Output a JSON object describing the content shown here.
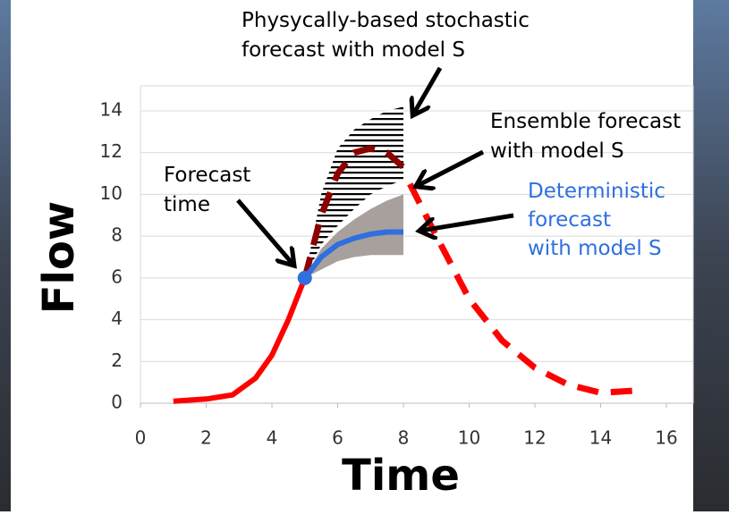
{
  "chart_data": {
    "type": "line",
    "xlabel": "Time",
    "ylabel": "Flow",
    "xlim": [
      0,
      16
    ],
    "xticks": [
      0,
      2,
      4,
      6,
      8,
      10,
      12,
      14,
      16
    ],
    "ylim": [
      0,
      14
    ],
    "yticks": [
      0,
      2,
      4,
      6,
      8,
      10,
      12,
      14
    ],
    "grid": true,
    "bands": [
      {
        "x": [
          5,
          5.5,
          6,
          6.5,
          7,
          7.5,
          8
        ],
        "upper": [
          6,
          10,
          12.2,
          13.1,
          13.6,
          14,
          14.2
        ],
        "lower": [
          6,
          7.6,
          8.5,
          9.3,
          10,
          10.4,
          10.7
        ],
        "fill": "hatch",
        "color": "#000000"
      },
      {
        "x": [
          5,
          5.5,
          6,
          6.5,
          7,
          7.5,
          8
        ],
        "upper": [
          6,
          7.4,
          8.2,
          8.8,
          9.3,
          9.7,
          10
        ],
        "lower": [
          6,
          6.4,
          6.8,
          7,
          7.1,
          7.1,
          7.1
        ],
        "fill": "solid",
        "color": "#a8a09d"
      }
    ],
    "series": [
      {
        "x": [
          8.2,
          9,
          10,
          11,
          12,
          13,
          14,
          15
        ],
        "values": [
          10.5,
          8,
          5,
          3,
          1.7,
          0.9,
          0.5,
          0.6
        ],
        "color": "#ff0000",
        "style": "dashed"
      },
      {
        "x": [
          1,
          2,
          2.8,
          3.5,
          4,
          4.5,
          5
        ],
        "values": [
          0.1,
          0.2,
          0.4,
          1.2,
          2.3,
          4,
          6
        ],
        "color": "#ff0000",
        "style": "solid"
      },
      {
        "x": [
          5,
          5.5,
          6,
          6.5,
          7,
          7.5,
          8
        ],
        "values": [
          6,
          9,
          11,
          12,
          12.2,
          12,
          11.3
        ],
        "color": "#8b0000",
        "style": "dashed"
      },
      {
        "x": [
          5,
          5.5,
          6,
          6.5,
          7,
          7.5,
          8
        ],
        "values": [
          6,
          7,
          7.6,
          7.9,
          8.1,
          8.2,
          8.2
        ],
        "color": "#2f6fe0",
        "style": "solid"
      }
    ],
    "forecast_point": {
      "x": 5,
      "value": 6,
      "color": "#2f6fe0"
    },
    "annotations": [
      {
        "lines": [
          "Physycally-based stochastic",
          "forecast with model S"
        ],
        "color": "#000000"
      },
      {
        "lines": [
          "Ensemble forecast",
          "with model S"
        ],
        "color": "#000000"
      },
      {
        "lines": [
          "Deterministic",
          "forecast",
          "with model S"
        ],
        "color": "#2f6fe0"
      },
      {
        "lines": [
          "Forecast",
          "time"
        ],
        "color": "#000000"
      }
    ]
  }
}
